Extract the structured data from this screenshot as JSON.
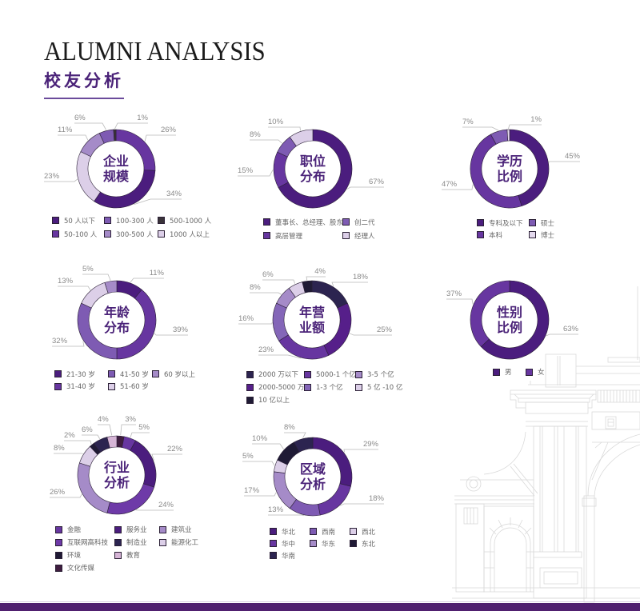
{
  "header": {
    "title_en": "ALUMNI ANALYSIS",
    "title_zh": "校友分析"
  },
  "chart_data": [
    {
      "type": "pie",
      "variant": "donut",
      "title": "企业规模",
      "center_title": [
        "企业",
        "规模"
      ],
      "unit": "%",
      "segments": [
        {
          "label": "50-100 人",
          "value": 26,
          "color": "#6736a0",
          "leader": [
            38,
            -42,
            75
          ]
        },
        {
          "label": "50 人以下",
          "value": 34,
          "color": "#4b1d7e",
          "leader": [
            43,
            38,
            82
          ]
        },
        {
          "label": "1000 人以上",
          "value": 23,
          "color": "#dccfe8",
          "leader": [
            -52,
            16,
            -90
          ]
        },
        {
          "label": "300-500 人",
          "value": 11,
          "color": "#a58bc8",
          "leader": [
            -38,
            -42,
            -73
          ]
        },
        {
          "label": "100-300 人",
          "value": 6,
          "color": "#7e5bb3",
          "leader": [
            -17,
            -57,
            -52
          ]
        },
        {
          "label": "500-1000 人",
          "value": 1,
          "color": "#3a3339",
          "leader": [
            2,
            -57,
            40
          ]
        }
      ],
      "legend": [
        {
          "label": "50 人以下",
          "color": "#4b1d7e"
        },
        {
          "label": "100-300 人",
          "color": "#7e5bb3"
        },
        {
          "label": "500-1000 人",
          "color": "#3a3339"
        },
        {
          "label": "50-100 人",
          "color": "#6736a0"
        },
        {
          "label": "300-500 人",
          "color": "#a58bc8"
        },
        {
          "label": "1000 人以上",
          "color": "#dccfe8"
        }
      ]
    },
    {
      "type": "pie",
      "variant": "donut",
      "title": "职位分布",
      "center_title": [
        "职位",
        "分布"
      ],
      "unit": "%",
      "segments": [
        {
          "label": "董事长、总经理、股东",
          "value": 67,
          "color": "#4b1d7e",
          "leader": [
            47,
            23,
            89
          ]
        },
        {
          "label": "高层管理",
          "value": 15,
          "color": "#6736a0",
          "leader": [
            -54,
            9,
            -94
          ]
        },
        {
          "label": "创二代",
          "value": 8,
          "color": "#7e5bb3",
          "leader": [
            -43,
            -36,
            -79
          ]
        },
        {
          "label": "经理人",
          "value": 10,
          "color": "#dccfe8",
          "leader": [
            -16,
            -52,
            -56
          ]
        }
      ],
      "legend": [
        {
          "label": "董事长、总经理、股东",
          "color": "#4b1d7e"
        },
        {
          "label": "创二代",
          "color": "#7e5bb3"
        },
        {
          "label": "高层管理",
          "color": "#6736a0"
        },
        {
          "label": "经理人",
          "color": "#dccfe8"
        }
      ]
    },
    {
      "type": "pie",
      "variant": "donut",
      "title": "学历比例",
      "center_title": [
        "学历",
        "比例"
      ],
      "unit": "%",
      "segments": [
        {
          "label": "专科及以下",
          "value": 45,
          "color": "#4b1d7e",
          "leader": [
            50,
            -9,
            88
          ]
        },
        {
          "label": "本科",
          "value": 47,
          "color": "#6736a0",
          "leader": [
            -47,
            26,
            -85
          ]
        },
        {
          "label": "硕士",
          "value": 7,
          "color": "#7e5bb3",
          "leader": [
            -22,
            -52,
            -59
          ]
        },
        {
          "label": "博士",
          "value": 1,
          "color": "#e4d9ee",
          "leader": [
            0,
            -55,
            40
          ]
        }
      ],
      "legend": [
        {
          "label": "专科及以下",
          "color": "#4b1d7e"
        },
        {
          "label": "硕士",
          "color": "#7e5bb3"
        },
        {
          "label": "本科",
          "color": "#6736a0"
        },
        {
          "label": "博士",
          "color": "#e4d9ee"
        }
      ]
    },
    {
      "type": "pie",
      "variant": "donut",
      "title": "年龄分布",
      "center_title": [
        "年龄",
        "分布"
      ],
      "unit": "%",
      "segments": [
        {
          "label": "21-30 岁",
          "value": 11,
          "color": "#4b1d7e",
          "leader": [
            21,
            -52,
            59
          ]
        },
        {
          "label": "31-40 岁",
          "value": 39,
          "color": "#6736a0",
          "leader": [
            49,
            19,
            89
          ]
        },
        {
          "label": "41-50 岁",
          "value": 32,
          "color": "#7e5bb3",
          "leader": [
            -41,
            33,
            -81
          ]
        },
        {
          "label": "51-60 岁",
          "value": 13,
          "color": "#dccfe8",
          "leader": [
            -36,
            -42,
            -74
          ]
        },
        {
          "label": "60 岁以上",
          "value": 5,
          "color": "#a58bc8",
          "leader": [
            -11,
            -57,
            -43
          ]
        }
      ],
      "legend": [
        {
          "label": "21-30 岁",
          "color": "#4b1d7e"
        },
        {
          "label": "41-50 岁",
          "color": "#7e5bb3"
        },
        {
          "label": "60 岁以上",
          "color": "#a58bc8"
        },
        {
          "label": "31-40 岁",
          "color": "#6736a0"
        },
        {
          "label": "51-60 岁",
          "color": "#dccfe8"
        }
      ]
    },
    {
      "type": "pie",
      "variant": "donut",
      "title": "年营业额",
      "center_title": [
        "年营",
        "业额"
      ],
      "unit": "%",
      "segments": [
        {
          "label": "2000 万以下",
          "value": 18,
          "color": "#2c2450",
          "leader": [
            25,
            -47,
            70
          ]
        },
        {
          "label": "2000-5000 万",
          "value": 25,
          "color": "#561f8a",
          "leader": [
            52,
            19,
            100
          ]
        },
        {
          "label": "5000-1 个亿",
          "value": 23,
          "color": "#6736a0",
          "leader": [
            -30,
            44,
            -67
          ]
        },
        {
          "label": "1-3 个亿",
          "value": 16,
          "color": "#8466b8",
          "leader": [
            -50,
            5,
            -92
          ]
        },
        {
          "label": "3-5 个亿",
          "value": 8,
          "color": "#a58bc8",
          "leader": [
            -42,
            -34,
            -78
          ]
        },
        {
          "label": "5 亿 -10 亿",
          "value": 6,
          "color": "#dccfe8",
          "leader": [
            -23,
            -50,
            -62
          ]
        },
        {
          "label": "10 亿以上",
          "value": 4,
          "color": "#1f1a35",
          "leader": [
            -7,
            -54,
            17
          ]
        }
      ],
      "legend": [
        {
          "label": "2000 万以下",
          "color": "#2c2450"
        },
        {
          "label": "5000-1 个亿",
          "color": "#6736a0"
        },
        {
          "label": "3-5 个亿",
          "color": "#a58bc8"
        },
        {
          "label": "2000-5000 万",
          "color": "#561f8a"
        },
        {
          "label": "1-3 个亿",
          "color": "#8466b8"
        },
        {
          "label": "5 亿 -10 亿",
          "color": "#dccfe8"
        },
        {
          "label": "10 亿以上",
          "color": "#1f1a35"
        }
      ]
    },
    {
      "type": "pie",
      "variant": "donut",
      "title": "性别比例",
      "center_title": [
        "性别",
        "比例"
      ],
      "unit": "%",
      "segments": [
        {
          "label": "男",
          "value": 63,
          "color": "#4b1d7e",
          "leader": [
            50,
            18,
            86
          ]
        },
        {
          "label": "女",
          "value": 37,
          "color": "#6736a0",
          "leader": [
            -47,
            -26,
            -79
          ]
        }
      ],
      "legend": [
        {
          "label": "男",
          "color": "#4b1d7e"
        },
        {
          "label": "女",
          "color": "#6736a0"
        }
      ]
    },
    {
      "type": "pie",
      "variant": "donut",
      "title": "行业分析",
      "center_title": [
        "行业",
        "分析"
      ],
      "unit": "%",
      "segments": [
        {
          "label": "文化传媒",
          "value": 3,
          "color": "#3f1d3f",
          "leader": [
            6,
            -63,
            24
          ]
        },
        {
          "label": "金融",
          "value": 5,
          "color": "#6736a0",
          "leader": [
            19,
            -53,
            41
          ]
        },
        {
          "label": "服务业",
          "value": 22,
          "color": "#4b1d7e",
          "leader": [
            44,
            -26,
            82
          ]
        },
        {
          "label": "互联网高科技",
          "value": 24,
          "color": "#6e3aa8",
          "leader": [
            29,
            44,
            71
          ]
        },
        {
          "label": "建筑业",
          "value": 26,
          "color": "#a58bc8",
          "leader": [
            -46,
            28,
            -84
          ]
        },
        {
          "label": "能源化工",
          "value": 8,
          "color": "#dccfe8",
          "leader": [
            -44,
            -27,
            -79
          ]
        },
        {
          "label": "环境",
          "value": 2,
          "color": "#1f1a35",
          "leader": [
            -33,
            -43,
            -66
          ]
        },
        {
          "label": "制造业",
          "value": 6,
          "color": "#2c2450",
          "leader": [
            -24,
            -50,
            -44
          ]
        },
        {
          "label": "教育",
          "value": 4,
          "color": "#d6b5d6",
          "leader": [
            -9,
            -63,
            -24
          ]
        }
      ],
      "legend": [
        {
          "label": "金融",
          "color": "#6736a0"
        },
        {
          "label": "服务业",
          "color": "#4b1d7e"
        },
        {
          "label": "建筑业",
          "color": "#a58bc8"
        },
        {
          "label": "互联网高科技",
          "color": "#6e3aa8"
        },
        {
          "label": "制造业",
          "color": "#2c2450"
        },
        {
          "label": "能源化工",
          "color": "#dccfe8"
        },
        {
          "label": "环境",
          "color": "#1f1a35"
        },
        {
          "label": "教育",
          "color": "#d6b5d6"
        },
        null,
        {
          "label": "文化传媒",
          "color": "#3f1d3f"
        }
      ]
    },
    {
      "type": "pie",
      "variant": "donut",
      "title": "区域分析",
      "center_title": [
        "区域",
        "分析"
      ],
      "unit": "%",
      "segments": [
        {
          "label": "华北",
          "value": 29,
          "color": "#4b1d7e",
          "leader": [
            39,
            -34,
            82
          ]
        },
        {
          "label": "华中",
          "value": 18,
          "color": "#6736a0",
          "leader": [
            39,
            34,
            89
          ]
        },
        {
          "label": "西南",
          "value": 13,
          "color": "#7e5bb3",
          "leader": [
            -14,
            48,
            -56
          ]
        },
        {
          "label": "华东",
          "value": 17,
          "color": "#a58bc8",
          "leader": [
            -48,
            24,
            -86
          ]
        },
        {
          "label": "西北",
          "value": 5,
          "color": "#dccfe8",
          "leader": [
            -51,
            -19,
            -88
          ]
        },
        {
          "label": "东北",
          "value": 10,
          "color": "#1f1a35",
          "leader": [
            -41,
            -41,
            -76
          ]
        },
        {
          "label": "华南",
          "value": 8,
          "color": "#2c2450",
          "leader": [
            -9,
            -55,
            -36
          ]
        }
      ],
      "legend": [
        {
          "label": "华北",
          "color": "#4b1d7e"
        },
        {
          "label": "西南",
          "color": "#7e5bb3"
        },
        {
          "label": "西北",
          "color": "#dccfe8"
        },
        {
          "label": "华中",
          "color": "#6736a0"
        },
        {
          "label": "华东",
          "color": "#a58bc8"
        },
        {
          "label": "东北",
          "color": "#1f1a35"
        },
        {
          "label": "华南",
          "color": "#2c2450"
        }
      ]
    }
  ]
}
